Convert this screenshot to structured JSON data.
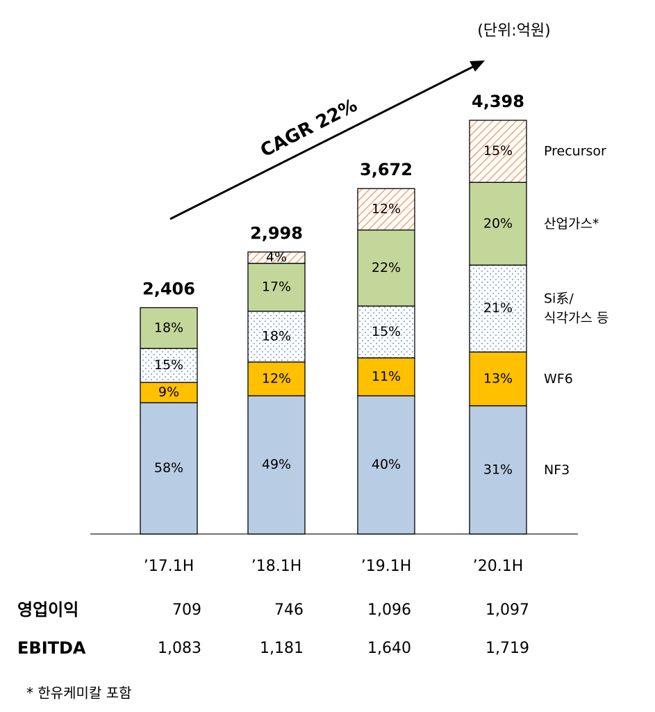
{
  "chart_data": {
    "type": "stacked_bar",
    "unit": "(단위:억원)",
    "annotation": "CAGR 22%",
    "categories": [
      "’17.1H",
      "’18.1H",
      "’19.1H",
      "’20.1H"
    ],
    "totals": {
      "values": [
        2406,
        2998,
        3672,
        4398
      ],
      "value_labels": [
        "2,406",
        "2,998",
        "3,672",
        "4,398"
      ]
    },
    "series": [
      {
        "name": "NF3",
        "color": "#b8cce4",
        "values": [
          58,
          49,
          40,
          31
        ],
        "value_labels": [
          "58%",
          "49%",
          "40%",
          "31%"
        ]
      },
      {
        "name": "WF6",
        "color": "#ffc000",
        "values": [
          9,
          12,
          11,
          13
        ],
        "value_labels": [
          "9%",
          "12%",
          "11%",
          "13%"
        ]
      },
      {
        "name": "Si系/\n식각가스 등",
        "color": "#6f9bd1",
        "pattern": "dots",
        "values": [
          15,
          18,
          15,
          21
        ],
        "value_labels": [
          "15%",
          "18%",
          "15%",
          "21%"
        ]
      },
      {
        "name": "산업가스*",
        "color": "#c4d79b",
        "values": [
          18,
          17,
          22,
          20
        ],
        "value_labels": [
          "18%",
          "17%",
          "22%",
          "20%"
        ]
      },
      {
        "name": "Precursor",
        "color": "#f4a46a",
        "pattern": "hatch",
        "values": [
          null,
          4,
          12,
          15
        ],
        "value_labels": [
          null,
          "4%",
          "12%",
          "15%"
        ]
      }
    ]
  },
  "table": {
    "rows": [
      [
        "영업이익",
        "709",
        "746",
        "1,096",
        "1,097"
      ],
      [
        "EBITDA",
        "1,083",
        "1,181",
        "1,640",
        "1,719"
      ]
    ]
  },
  "footnote": "* 한유케미칼 포함"
}
